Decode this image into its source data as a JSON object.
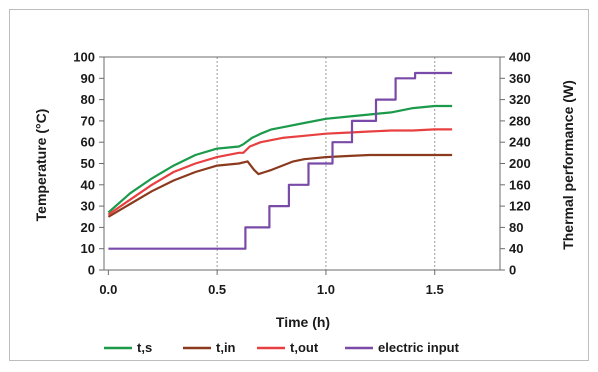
{
  "chart_data": {
    "type": "line",
    "title": "",
    "xlabel": "Time (h)",
    "ylabel": "Temperature (°C)",
    "y2label": "Thermal performance (W)",
    "xlim": [
      -0.02,
      1.8
    ],
    "ylim": [
      0,
      100
    ],
    "y2lim": [
      0,
      400
    ],
    "xticks": [
      0.0,
      0.5,
      1.0,
      1.5
    ],
    "xtick_labels": [
      "0.0",
      "0.5",
      "1.0",
      "1.5"
    ],
    "yticks": [
      0,
      10,
      20,
      30,
      40,
      50,
      60,
      70,
      80,
      90,
      100
    ],
    "ytick_labels": [
      "0",
      "10",
      "20",
      "30",
      "40",
      "50",
      "60",
      "70",
      "80",
      "90",
      "100"
    ],
    "y2ticks": [
      0,
      40,
      80,
      120,
      160,
      200,
      240,
      280,
      320,
      360,
      400
    ],
    "y2tick_labels": [
      "0",
      "40",
      "80",
      "120",
      "160",
      "200",
      "240",
      "280",
      "320",
      "360",
      "400"
    ],
    "grid": "vertical dashed",
    "legend_position": "bottom",
    "series": [
      {
        "name": "t,s",
        "axis": "left",
        "color": "#1a9a4a",
        "x": [
          0.0,
          0.1,
          0.2,
          0.3,
          0.4,
          0.5,
          0.6,
          0.62,
          0.66,
          0.7,
          0.75,
          0.8,
          0.9,
          1.0,
          1.1,
          1.2,
          1.3,
          1.4,
          1.5,
          1.58
        ],
        "y": [
          27,
          36,
          43,
          49,
          54,
          57,
          58,
          59,
          62,
          64,
          66,
          67,
          69,
          71,
          72,
          73,
          74,
          76,
          77,
          77
        ]
      },
      {
        "name": "t,in",
        "axis": "left",
        "color": "#8b3a1e",
        "x": [
          0.0,
          0.1,
          0.2,
          0.3,
          0.4,
          0.5,
          0.6,
          0.64,
          0.67,
          0.69,
          0.72,
          0.75,
          0.8,
          0.85,
          0.9,
          1.0,
          1.1,
          1.2,
          1.3,
          1.4,
          1.5,
          1.58
        ],
        "y": [
          25,
          31,
          37,
          42,
          46,
          49,
          50,
          51,
          47,
          45,
          46,
          47,
          49,
          51,
          52,
          53,
          53.5,
          54,
          54,
          54,
          54,
          54
        ]
      },
      {
        "name": "t,out",
        "axis": "left",
        "color": "#e84040",
        "x": [
          0.0,
          0.1,
          0.2,
          0.3,
          0.4,
          0.5,
          0.6,
          0.62,
          0.65,
          0.7,
          0.8,
          0.9,
          1.0,
          1.1,
          1.2,
          1.3,
          1.4,
          1.5,
          1.58
        ],
        "y": [
          26,
          33,
          40,
          46,
          50,
          53,
          55,
          55,
          58,
          60,
          62,
          63,
          64,
          64.5,
          65,
          65.5,
          65.5,
          66,
          66
        ]
      },
      {
        "name": "electric input",
        "axis": "right",
        "color": "#7a4aa8",
        "step": true,
        "x": [
          0.0,
          0.63,
          0.74,
          0.83,
          0.92,
          1.03,
          1.12,
          1.23,
          1.32,
          1.41,
          1.5,
          1.58
        ],
        "y": [
          40,
          80,
          120,
          160,
          200,
          240,
          280,
          320,
          360,
          370,
          370,
          370
        ]
      }
    ]
  }
}
